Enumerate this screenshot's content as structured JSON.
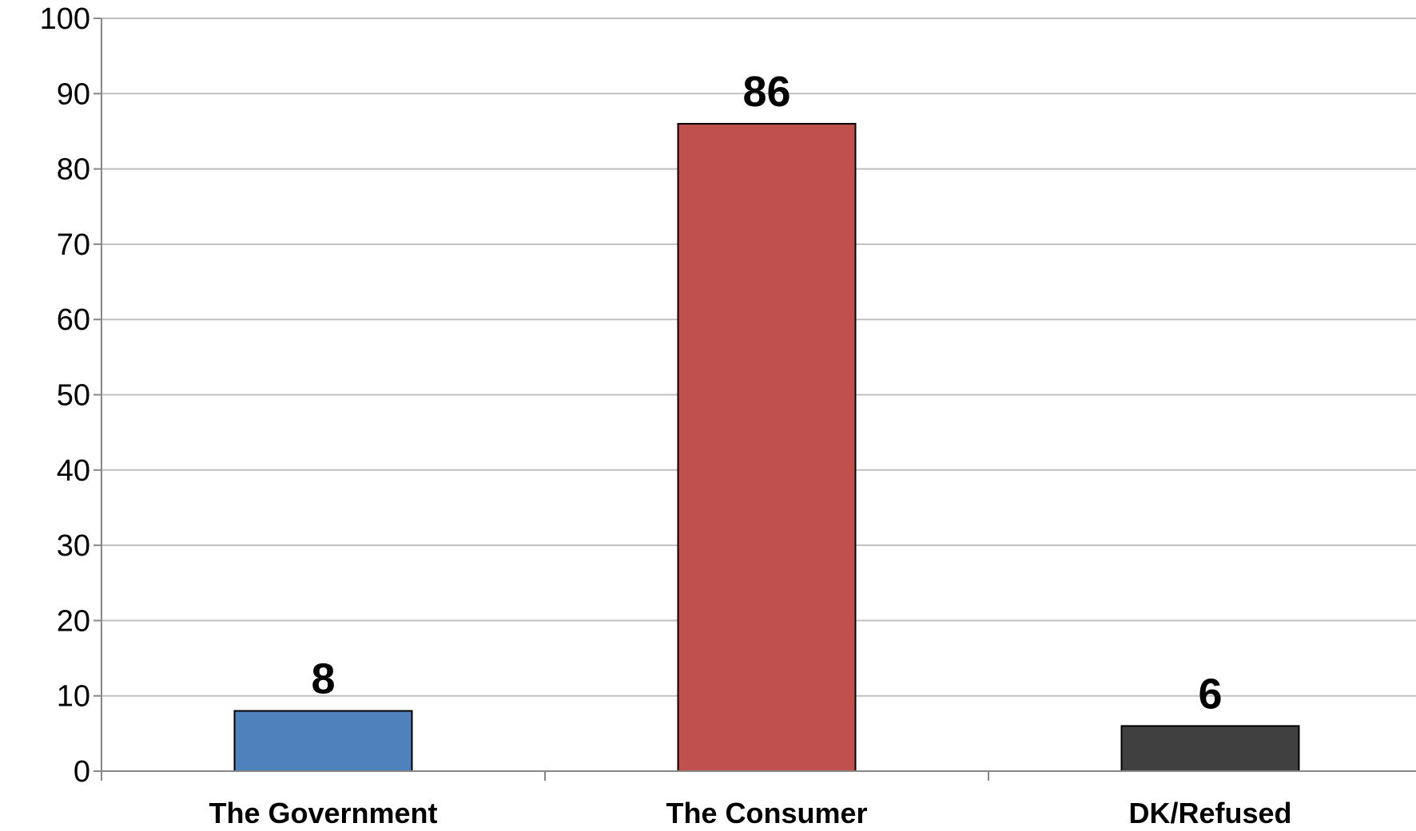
{
  "chart_data": {
    "type": "bar",
    "categories": [
      "The Government",
      "The Consumer",
      "DK/Refused"
    ],
    "values": [
      8,
      86,
      6
    ],
    "colors": [
      "#4f81bd",
      "#c0504d",
      "#404040"
    ],
    "data_labels": [
      "8",
      "86",
      "6"
    ],
    "title": "",
    "xlabel": "",
    "ylabel": "",
    "ylim": [
      0,
      100
    ],
    "yticks": [
      0,
      10,
      20,
      30,
      40,
      50,
      60,
      70,
      80,
      90,
      100
    ],
    "grid": true,
    "legend": "none"
  }
}
